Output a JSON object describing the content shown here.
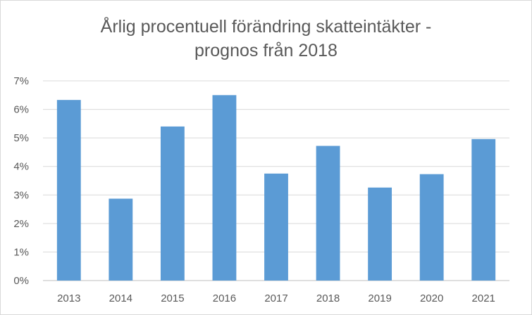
{
  "chart_data": {
    "type": "bar",
    "title_lines": [
      "Årlig procentuell förändring skatteintäkter -",
      "prognos från 2018"
    ],
    "categories": [
      "2013",
      "2014",
      "2015",
      "2016",
      "2017",
      "2018",
      "2019",
      "2020",
      "2021"
    ],
    "values": [
      6.33,
      2.87,
      5.4,
      6.5,
      3.75,
      4.72,
      3.26,
      3.73,
      4.96
    ],
    "yticks": [
      0,
      1,
      2,
      3,
      4,
      5,
      6,
      7
    ],
    "ytick_labels": [
      "0%",
      "1%",
      "2%",
      "3%",
      "4%",
      "5%",
      "6%",
      "7%"
    ],
    "ylim": [
      0,
      7
    ],
    "xlabel": "",
    "ylabel": "",
    "grid": true,
    "legend": "none",
    "bar_color": "#5b9bd5"
  }
}
